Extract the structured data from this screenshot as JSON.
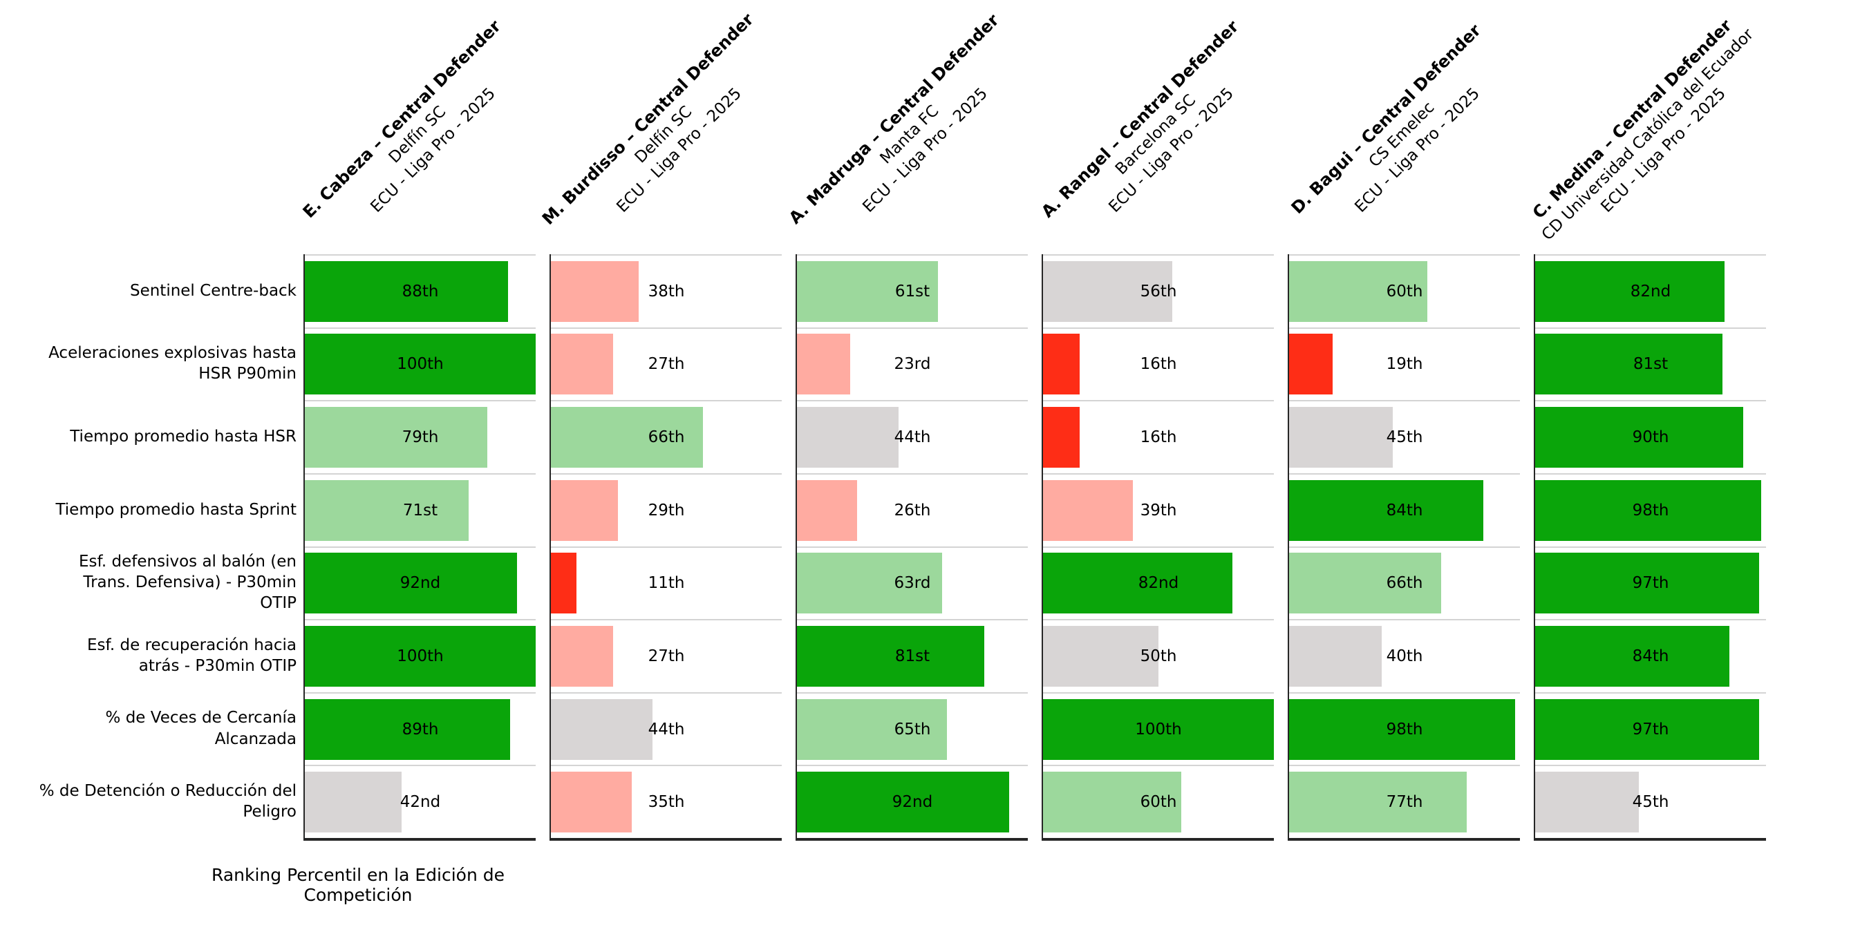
{
  "chart": {
    "xlabel": "Ranking Percentil en la Edición de Competición"
  },
  "metrics": [
    "Sentinel Centre-back",
    "Aceleraciones explosivas hasta\nHSR P90min",
    "Tiempo promedio hasta HSR",
    "Tiempo promedio hasta Sprint",
    "Esf. defensivos al balón (en\nTrans. Defensiva) - P30min\nOTIP",
    "Esf. de recuperación hacia\natrás - P30min OTIP",
    "% de Veces de Cercanía\nAlcanzada",
    "% de Detención o Reducción del\nPeligro"
  ],
  "players": [
    {
      "name": "E. Cabeza – Central Defender",
      "team": "Delfín SC",
      "league": "ECU - Liga Pro - 2025",
      "bars": [
        {
          "pct": 88,
          "label": "88th"
        },
        {
          "pct": 100,
          "label": "100th"
        },
        {
          "pct": 79,
          "label": "79th"
        },
        {
          "pct": 71,
          "label": "71st"
        },
        {
          "pct": 92,
          "label": "92nd"
        },
        {
          "pct": 100,
          "label": "100th"
        },
        {
          "pct": 89,
          "label": "89th"
        },
        {
          "pct": 42,
          "label": "42nd"
        }
      ]
    },
    {
      "name": "M. Burdisso – Central Defender",
      "team": "Delfín SC",
      "league": "ECU - Liga Pro - 2025",
      "bars": [
        {
          "pct": 38,
          "label": "38th"
        },
        {
          "pct": 27,
          "label": "27th"
        },
        {
          "pct": 66,
          "label": "66th"
        },
        {
          "pct": 29,
          "label": "29th"
        },
        {
          "pct": 11,
          "label": "11th"
        },
        {
          "pct": 27,
          "label": "27th"
        },
        {
          "pct": 44,
          "label": "44th"
        },
        {
          "pct": 35,
          "label": "35th"
        }
      ]
    },
    {
      "name": "A. Madruga – Central Defender",
      "team": "Manta FC",
      "league": "ECU - Liga Pro - 2025",
      "bars": [
        {
          "pct": 61,
          "label": "61st"
        },
        {
          "pct": 23,
          "label": "23rd"
        },
        {
          "pct": 44,
          "label": "44th"
        },
        {
          "pct": 26,
          "label": "26th"
        },
        {
          "pct": 63,
          "label": "63rd"
        },
        {
          "pct": 81,
          "label": "81st"
        },
        {
          "pct": 65,
          "label": "65th"
        },
        {
          "pct": 92,
          "label": "92nd"
        }
      ]
    },
    {
      "name": "A. Rangel – Central Defender",
      "team": "Barcelona SC",
      "league": "ECU - Liga Pro - 2025",
      "bars": [
        {
          "pct": 56,
          "label": "56th"
        },
        {
          "pct": 16,
          "label": "16th"
        },
        {
          "pct": 16,
          "label": "16th"
        },
        {
          "pct": 39,
          "label": "39th"
        },
        {
          "pct": 82,
          "label": "82nd"
        },
        {
          "pct": 50,
          "label": "50th"
        },
        {
          "pct": 100,
          "label": "100th"
        },
        {
          "pct": 60,
          "label": "60th"
        }
      ]
    },
    {
      "name": "D. Bagui – Central Defender",
      "team": "CS Emelec",
      "league": "ECU - Liga Pro - 2025",
      "bars": [
        {
          "pct": 60,
          "label": "60th"
        },
        {
          "pct": 19,
          "label": "19th"
        },
        {
          "pct": 45,
          "label": "45th"
        },
        {
          "pct": 84,
          "label": "84th"
        },
        {
          "pct": 66,
          "label": "66th"
        },
        {
          "pct": 40,
          "label": "40th"
        },
        {
          "pct": 98,
          "label": "98th"
        },
        {
          "pct": 77,
          "label": "77th"
        }
      ]
    },
    {
      "name": "C. Medina – Central Defender",
      "team": "CD Universidad Católica del Ecuador",
      "league": "ECU - Liga Pro - 2025",
      "bars": [
        {
          "pct": 82,
          "label": "82nd"
        },
        {
          "pct": 81,
          "label": "81st"
        },
        {
          "pct": 90,
          "label": "90th"
        },
        {
          "pct": 98,
          "label": "98th"
        },
        {
          "pct": 97,
          "label": "97th"
        },
        {
          "pct": 84,
          "label": "84th"
        },
        {
          "pct": 97,
          "label": "97th"
        },
        {
          "pct": 45,
          "label": "45th"
        }
      ]
    }
  ],
  "colors": {
    "strong_green": "#0aa50a",
    "light_green": "#9cd89c",
    "neutral_gray": "#d8d5d5",
    "salmon": "#ffaba1",
    "strong_red": "#fe2d16",
    "separator": "#d4d4d4",
    "spine": "#262626"
  },
  "bands": [
    {
      "min": 80,
      "color": "strong_green"
    },
    {
      "min": 60,
      "color": "light_green"
    },
    {
      "min": 40,
      "color": "neutral_gray"
    },
    {
      "min": 20,
      "color": "salmon"
    },
    {
      "min": 0,
      "color": "strong_red"
    }
  ],
  "chart_data": {
    "type": "bar",
    "layout": "horizontal small multiples, 6 player columns x 8 metric rows",
    "title": "",
    "xlabel": "Ranking Percentil en la Edición de Competición",
    "xlim": [
      0,
      100
    ],
    "grid": "row separators only",
    "legend": "none",
    "categories": [
      "Sentinel Centre-back",
      "Aceleraciones explosivas hasta HSR P90min",
      "Tiempo promedio hasta HSR",
      "Tiempo promedio hasta Sprint",
      "Esf. defensivos al balón (en Trans. Defensiva) - P30min OTIP",
      "Esf. de recuperación hacia atrás - P30min OTIP",
      "% de Veces de Cercanía Alcanzada",
      "% de Detención o Reducción del Peligro"
    ],
    "series": [
      {
        "name": "E. Cabeza – Central Defender (Delfín SC, ECU - Liga Pro - 2025)",
        "values": [
          88,
          100,
          79,
          71,
          92,
          100,
          89,
          42
        ]
      },
      {
        "name": "M. Burdisso – Central Defender (Delfín SC, ECU - Liga Pro - 2025)",
        "values": [
          38,
          27,
          66,
          29,
          11,
          27,
          44,
          35
        ]
      },
      {
        "name": "A. Madruga – Central Defender (Manta FC, ECU - Liga Pro - 2025)",
        "values": [
          61,
          23,
          44,
          26,
          63,
          81,
          65,
          92
        ]
      },
      {
        "name": "A. Rangel – Central Defender (Barcelona SC, ECU - Liga Pro - 2025)",
        "values": [
          56,
          16,
          16,
          39,
          82,
          50,
          100,
          60
        ]
      },
      {
        "name": "D. Bagui – Central Defender (CS Emelec, ECU - Liga Pro - 2025)",
        "values": [
          60,
          19,
          45,
          84,
          66,
          40,
          98,
          77
        ]
      },
      {
        "name": "C. Medina – Central Defender (CD Universidad Católica del Ecuador, ECU - Liga Pro - 2025)",
        "values": [
          82,
          81,
          90,
          98,
          97,
          84,
          97,
          45
        ]
      }
    ]
  }
}
